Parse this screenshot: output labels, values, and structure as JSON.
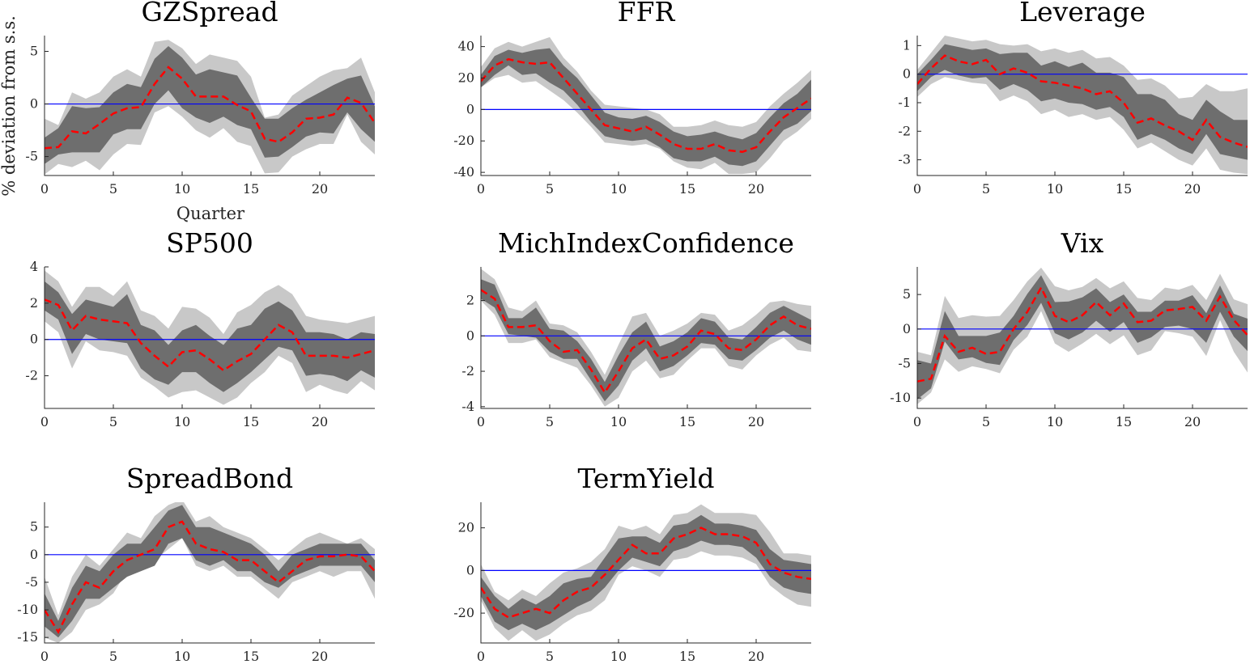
{
  "figure": {
    "xlabel": "Quarter",
    "ylabel": "% deviation from s.s.",
    "colors": {
      "outer_band": "#c8c8c8",
      "inner_band": "#6e6e6e",
      "median": "#ff0000",
      "zero_line": "#0000ff",
      "axis": "#262626"
    }
  },
  "chart_data": [
    {
      "type": "area",
      "title": "GZSpread",
      "xlim": [
        0,
        24
      ],
      "ylim": [
        -6.8,
        6.5
      ],
      "xticks": [
        0,
        5,
        10,
        15,
        20
      ],
      "yticks": [
        -5,
        0,
        5
      ],
      "median": [
        -4.2,
        -4.1,
        -2.6,
        -2.8,
        -1.9,
        -0.9,
        -0.4,
        -0.3,
        1.9,
        3.5,
        2.4,
        0.7,
        0.7,
        0.7,
        -0.1,
        -0.7,
        -3.3,
        -3.6,
        -2.7,
        -1.4,
        -1.3,
        -1.0,
        0.6,
        0.1,
        -1.8
      ],
      "inner_upper": [
        -3.2,
        -2.3,
        -0.2,
        -0.4,
        -0.3,
        1.1,
        1.9,
        1.6,
        4.3,
        5.5,
        4.4,
        2.8,
        3.3,
        3.0,
        2.7,
        0.6,
        -1.4,
        -1.4,
        -0.4,
        0.4,
        1.1,
        1.8,
        2.4,
        2.7,
        -0.2
      ],
      "inner_lower": [
        -5.7,
        -4.8,
        -4.6,
        -4.6,
        -4.6,
        -2.9,
        -2.4,
        -2.4,
        0.0,
        1.3,
        -0.4,
        -1.3,
        -1.8,
        -1.2,
        -2.0,
        -2.4,
        -5.1,
        -5.0,
        -4.1,
        -3.1,
        -2.7,
        -2.8,
        -0.8,
        -2.4,
        -3.6
      ],
      "outer_upper": [
        -1.4,
        -2.0,
        1.1,
        0.5,
        1.1,
        2.6,
        3.3,
        2.6,
        5.9,
        6.1,
        5.3,
        3.8,
        4.7,
        4.4,
        4.1,
        2.6,
        -1.3,
        -1.0,
        0.8,
        1.7,
        2.6,
        3.2,
        3.4,
        4.4,
        1.1
      ],
      "outer_lower": [
        -6.7,
        -5.7,
        -6.0,
        -5.4,
        -6.3,
        -4.8,
        -3.8,
        -3.9,
        -0.8,
        -0.2,
        -1.2,
        -2.5,
        -3.2,
        -2.3,
        -3.6,
        -4.0,
        -6.6,
        -6.5,
        -5.0,
        -4.3,
        -3.8,
        -3.8,
        -1.0,
        -3.6,
        -4.8
      ]
    },
    {
      "type": "area",
      "title": "FFR",
      "xlim": [
        0,
        24
      ],
      "ylim": [
        -42,
        47
      ],
      "xticks": [
        0,
        5,
        10,
        15,
        20
      ],
      "yticks": [
        -40,
        -20,
        0,
        20,
        40
      ],
      "median": [
        18,
        28,
        32,
        30,
        29,
        30,
        20,
        10,
        0,
        -10,
        -12,
        -14,
        -11,
        -16,
        -22,
        -25,
        -25,
        -22,
        -26,
        -27,
        -24,
        -14,
        -5,
        1,
        7
      ],
      "inner_upper": [
        22,
        34,
        38,
        36,
        38,
        39,
        28,
        20,
        9,
        -2,
        -5,
        -6,
        -4,
        -8,
        -14,
        -17,
        -16,
        -14,
        -17,
        -19,
        -15,
        -5,
        4,
        10,
        19
      ],
      "inner_lower": [
        14,
        22,
        28,
        22,
        23,
        17,
        12,
        3,
        -8,
        -17,
        -19,
        -20,
        -19,
        -24,
        -31,
        -33,
        -33,
        -30,
        -35,
        -36,
        -33,
        -23,
        -13,
        -9,
        -1
      ],
      "outer_upper": [
        27,
        39,
        43,
        40,
        43,
        46,
        33,
        24,
        12,
        3,
        2,
        1,
        0,
        -3,
        -11,
        -11,
        -10,
        -7,
        -10,
        -11,
        -8,
        2,
        10,
        17,
        25
      ],
      "outer_lower": [
        14,
        20,
        22,
        17,
        18,
        12,
        6,
        -2,
        -11,
        -21,
        -22,
        -23,
        -22,
        -25,
        -33,
        -37,
        -38,
        -34,
        -41,
        -41,
        -40,
        -31,
        -20,
        -14,
        -6
      ]
    },
    {
      "type": "area",
      "title": "Leverage",
      "xlim": [
        0,
        24
      ],
      "ylim": [
        -3.55,
        1.35
      ],
      "xticks": [
        0,
        5,
        10,
        15,
        20
      ],
      "yticks": [
        -3,
        -2,
        -1,
        0,
        1
      ],
      "median": [
        -0.35,
        0.2,
        0.65,
        0.45,
        0.35,
        0.5,
        0.0,
        0.2,
        0.05,
        -0.25,
        -0.3,
        -0.4,
        -0.5,
        -0.7,
        -0.6,
        -1.0,
        -1.7,
        -1.55,
        -1.8,
        -2.0,
        -2.3,
        -1.6,
        -2.2,
        -2.4,
        -2.55
      ],
      "inner_upper": [
        0.0,
        0.5,
        1.05,
        0.95,
        0.85,
        0.9,
        0.7,
        0.75,
        0.75,
        0.3,
        0.45,
        0.25,
        0.4,
        0.05,
        0.05,
        -0.1,
        -0.7,
        -0.7,
        -0.9,
        -1.4,
        -1.6,
        -0.9,
        -1.3,
        -1.6,
        -1.6
      ],
      "inner_lower": [
        -0.6,
        -0.1,
        0.15,
        -0.05,
        -0.15,
        -0.1,
        -0.55,
        -0.35,
        -0.55,
        -0.95,
        -0.85,
        -1.0,
        -1.05,
        -1.25,
        -1.15,
        -1.5,
        -2.3,
        -2.1,
        -2.3,
        -2.6,
        -2.8,
        -2.1,
        -2.8,
        -2.9,
        -3.0
      ],
      "outer_upper": [
        0.15,
        0.75,
        1.35,
        1.25,
        1.15,
        1.2,
        1.05,
        1.0,
        1.05,
        0.8,
        0.9,
        0.75,
        0.85,
        0.55,
        0.6,
        0.3,
        -0.2,
        -0.15,
        -0.4,
        -0.85,
        -0.8,
        -0.35,
        -0.6,
        -0.6,
        -0.5
      ],
      "outer_lower": [
        -0.8,
        -0.35,
        -0.1,
        -0.2,
        -0.3,
        -0.35,
        -0.95,
        -0.75,
        -0.95,
        -1.4,
        -1.25,
        -1.5,
        -1.4,
        -1.6,
        -1.5,
        -1.95,
        -2.6,
        -2.4,
        -2.7,
        -3.0,
        -3.2,
        -2.6,
        -3.35,
        -3.45,
        -3.5
      ]
    },
    {
      "type": "area",
      "title": "SP500",
      "xlim": [
        0,
        24
      ],
      "ylim": [
        -3.8,
        4.0
      ],
      "xticks": [
        0,
        5,
        10,
        15,
        20
      ],
      "yticks": [
        -2,
        0,
        2,
        4
      ],
      "median": [
        2.2,
        1.9,
        0.5,
        1.3,
        1.1,
        1.0,
        0.9,
        -0.2,
        -0.9,
        -1.5,
        -0.7,
        -0.6,
        -1.1,
        -1.7,
        -1.2,
        -0.8,
        0.0,
        0.8,
        0.4,
        -0.9,
        -0.9,
        -0.9,
        -1.0,
        -0.8,
        -0.6
      ],
      "inner_upper": [
        3.2,
        2.6,
        1.4,
        2.2,
        2.0,
        1.8,
        2.5,
        0.8,
        0.5,
        -0.3,
        0.5,
        0.8,
        0.2,
        -0.3,
        0.6,
        0.8,
        1.7,
        2.1,
        1.6,
        0.4,
        0.4,
        0.3,
        0.0,
        0.4,
        0.3
      ],
      "inner_lower": [
        1.6,
        1.1,
        -0.8,
        0.3,
        0.0,
        -0.1,
        -0.2,
        -1.6,
        -2.2,
        -2.5,
        -1.8,
        -1.8,
        -2.4,
        -2.9,
        -2.4,
        -1.8,
        -1.1,
        -0.4,
        -0.6,
        -2.0,
        -1.9,
        -2.0,
        -2.3,
        -1.7,
        -2.1
      ],
      "outer_upper": [
        3.8,
        3.2,
        1.8,
        2.9,
        2.9,
        2.4,
        3.2,
        1.6,
        1.3,
        0.6,
        1.8,
        1.7,
        1.2,
        0.3,
        1.5,
        1.9,
        2.6,
        3.0,
        2.5,
        1.3,
        1.1,
        1.0,
        0.9,
        1.1,
        1.3
      ],
      "outer_lower": [
        1.0,
        0.4,
        -1.6,
        -0.1,
        -0.6,
        -0.7,
        -0.9,
        -2.1,
        -2.6,
        -3.2,
        -2.9,
        -2.8,
        -3.2,
        -3.6,
        -3.2,
        -2.4,
        -1.8,
        -0.9,
        -1.3,
        -2.9,
        -2.5,
        -2.8,
        -3.0,
        -2.3,
        -2.8
      ]
    },
    {
      "type": "area",
      "title": "MichIndexConfidence",
      "xlim": [
        0,
        24
      ],
      "ylim": [
        -4.1,
        3.9
      ],
      "xticks": [
        0,
        5,
        10,
        15,
        20
      ],
      "yticks": [
        -4,
        -2,
        0,
        2
      ],
      "median": [
        2.6,
        2.1,
        0.5,
        0.5,
        0.6,
        -0.3,
        -0.9,
        -0.8,
        -1.9,
        -3.2,
        -2.0,
        -0.7,
        -0.2,
        -1.3,
        -1.1,
        -0.6,
        0.3,
        0.1,
        -0.7,
        -0.8,
        -0.2,
        0.6,
        1.1,
        0.6,
        0.4
      ],
      "inner_upper": [
        3.2,
        2.9,
        1.0,
        1.0,
        1.6,
        0.4,
        0.3,
        -0.3,
        -1.3,
        -2.6,
        -1.1,
        0.2,
        0.8,
        -0.6,
        -0.3,
        0.2,
        1.0,
        0.8,
        -0.1,
        -0.2,
        0.5,
        1.3,
        1.7,
        1.3,
        0.9
      ],
      "inner_lower": [
        2.1,
        1.6,
        0.1,
        0.0,
        -0.1,
        -0.9,
        -1.3,
        -1.3,
        -2.5,
        -3.7,
        -2.8,
        -1.4,
        -0.7,
        -2.0,
        -1.7,
        -1.1,
        -0.4,
        -0.5,
        -1.3,
        -1.4,
        -0.8,
        -0.1,
        0.3,
        -0.2,
        -0.5
      ],
      "outer_upper": [
        3.8,
        3.2,
        1.6,
        1.4,
        2.0,
        0.7,
        0.6,
        0.2,
        -0.9,
        -2.2,
        -0.5,
        1.1,
        1.3,
        0.0,
        0.3,
        0.7,
        1.3,
        1.2,
        0.3,
        0.6,
        1.2,
        1.9,
        2.0,
        1.8,
        1.7
      ],
      "outer_lower": [
        2.0,
        1.2,
        -0.4,
        -0.4,
        -0.2,
        -1.2,
        -1.5,
        -1.8,
        -2.8,
        -4.0,
        -3.5,
        -2.0,
        -1.4,
        -2.4,
        -2.2,
        -1.4,
        -0.7,
        -0.7,
        -1.7,
        -1.9,
        -1.1,
        -0.5,
        -0.1,
        -0.8,
        -0.9
      ]
    },
    {
      "type": "area",
      "title": "Vix",
      "xlim": [
        0,
        24
      ],
      "ylim": [
        -11.5,
        9.0
      ],
      "xticks": [
        0,
        5,
        10,
        15,
        20
      ],
      "yticks": [
        -10,
        -5,
        0,
        5
      ],
      "median": [
        -7.6,
        -7.2,
        -1.0,
        -3.3,
        -2.7,
        -3.6,
        -3.3,
        0.0,
        2.5,
        6.0,
        1.9,
        1.0,
        2.0,
        3.9,
        2.0,
        3.7,
        1.0,
        1.2,
        2.7,
        2.9,
        3.2,
        1.2,
        4.7,
        1.3,
        -0.9
      ],
      "inner_upper": [
        -4.5,
        -5.0,
        2.6,
        -1.0,
        -1.0,
        -1.0,
        -0.5,
        1.9,
        5.1,
        7.8,
        3.9,
        4.0,
        4.6,
        5.9,
        3.9,
        5.0,
        2.5,
        2.5,
        4.1,
        4.1,
        4.9,
        2.3,
        6.3,
        2.2,
        1.5
      ],
      "inner_lower": [
        -10.2,
        -8.6,
        -1.8,
        -4.4,
        -4.1,
        -4.9,
        -5.2,
        -1.6,
        0.6,
        3.8,
        -0.6,
        -1.5,
        -0.5,
        1.2,
        -0.4,
        1.0,
        -2.0,
        -1.2,
        0.3,
        0.5,
        0.0,
        -2.0,
        2.5,
        -1.1,
        -3.2
      ],
      "outer_upper": [
        -3.3,
        -3.8,
        4.8,
        1.6,
        2.0,
        1.8,
        1.9,
        4.2,
        6.9,
        8.9,
        6.2,
        5.6,
        6.1,
        7.4,
        5.9,
        6.9,
        4.5,
        4.2,
        6.0,
        5.7,
        6.4,
        4.2,
        8.0,
        4.3,
        3.6
      ],
      "outer_lower": [
        -10.9,
        -9.2,
        -4.4,
        -6.2,
        -5.4,
        -5.8,
        -6.4,
        -3.0,
        -1.1,
        2.6,
        -2.1,
        -3.3,
        -2.1,
        -0.7,
        -2.2,
        -0.9,
        -3.8,
        -3.1,
        -0.3,
        -0.6,
        -1.1,
        -3.9,
        1.3,
        -3.3,
        -6.3
      ]
    },
    {
      "type": "area",
      "title": "SpreadBond",
      "xlim": [
        0,
        24
      ],
      "ylim": [
        -16,
        9.5
      ],
      "xticks": [
        0,
        5,
        10,
        15,
        20
      ],
      "yticks": [
        -15,
        -10,
        -5,
        0,
        5
      ],
      "median": [
        -10,
        -14,
        -9,
        -5,
        -6,
        -3,
        -1,
        0,
        1,
        5,
        6,
        2,
        1,
        0.5,
        -1,
        -1,
        -3,
        -5,
        -3,
        -1,
        -0.3,
        -0.3,
        0,
        -0.3,
        -3
      ],
      "inner_upper": [
        -7,
        -12,
        -6,
        -2,
        -3,
        0,
        2,
        2,
        5,
        8,
        9,
        5,
        5,
        4,
        3,
        2,
        0,
        -3,
        0,
        1,
        2,
        2,
        2,
        2,
        -1
      ],
      "inner_lower": [
        -13,
        -15,
        -12,
        -8,
        -8,
        -6,
        -4,
        -3,
        -2,
        2,
        3,
        -1,
        -2,
        -1,
        -3,
        -3,
        -5,
        -6,
        -4,
        -3,
        -2,
        -2,
        -2,
        -2,
        -5
      ],
      "outer_upper": [
        -4,
        -11,
        -4,
        0,
        -2,
        1,
        4,
        3,
        7,
        9,
        10,
        6,
        7,
        5,
        4,
        3,
        1,
        -1,
        1,
        3,
        4,
        3,
        2,
        3,
        1
      ],
      "outer_lower": [
        -15,
        -16,
        -14,
        -10,
        -9,
        -7,
        -3,
        -3,
        -1,
        1,
        3,
        -2,
        -3,
        -2,
        -4,
        -4,
        -6,
        -8,
        -5,
        -4,
        -3,
        -4,
        -3,
        -3,
        -8
      ]
    },
    {
      "type": "area",
      "title": "TermYield",
      "xlim": [
        0,
        24
      ],
      "ylim": [
        -34,
        32
      ],
      "xticks": [
        0,
        5,
        10,
        15,
        20
      ],
      "yticks": [
        -20,
        0,
        20
      ],
      "median": [
        -8,
        -18,
        -22,
        -20,
        -18,
        -20,
        -14,
        -10,
        -8,
        -2,
        5,
        12,
        8,
        8,
        15,
        17,
        20,
        17,
        17,
        16,
        13,
        3,
        -1,
        -3,
        -4
      ],
      "inner_upper": [
        -3,
        -12,
        -18,
        -13,
        -16,
        -12,
        -6,
        -4,
        -3,
        6,
        15,
        16,
        16,
        13,
        21,
        22,
        26,
        22,
        22,
        21,
        19,
        10,
        5,
        4,
        3
      ],
      "inner_lower": [
        -12,
        -24,
        -28,
        -25,
        -28,
        -25,
        -21,
        -17,
        -14,
        -8,
        0,
        6,
        4,
        2,
        9,
        11,
        14,
        12,
        12,
        11,
        6,
        -3,
        -8,
        -10,
        -11
      ],
      "outer_upper": [
        3,
        -10,
        -14,
        -9,
        -12,
        -6,
        -1,
        1,
        4,
        10,
        21,
        19,
        21,
        17,
        26,
        27,
        31,
        27,
        27,
        27,
        26,
        18,
        8,
        8,
        7
      ],
      "outer_lower": [
        -14,
        -27,
        -33,
        -28,
        -33,
        -30,
        -25,
        -21,
        -19,
        -14,
        -2,
        2,
        0,
        -3,
        5,
        6,
        9,
        7,
        7,
        6,
        3,
        -7,
        -12,
        -16,
        -17
      ]
    }
  ]
}
